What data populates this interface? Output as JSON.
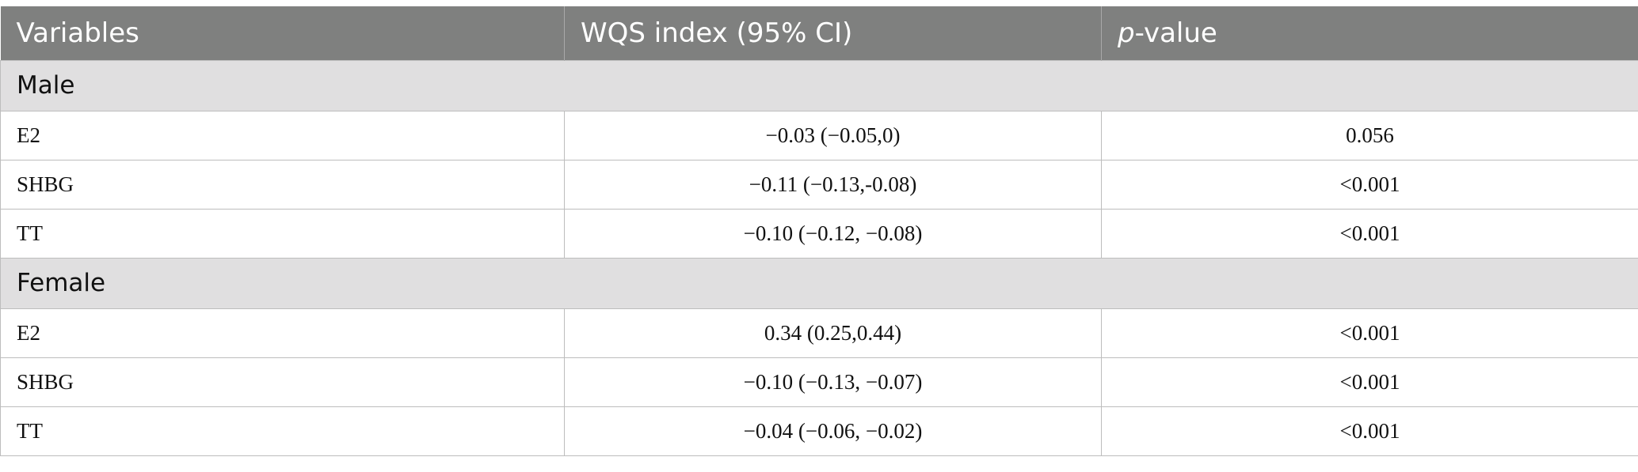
{
  "header": {
    "col1": "Variables",
    "col2": "WQS index (95% CI)",
    "col3_italic": "p",
    "col3_rest": "-value"
  },
  "groups": [
    {
      "label": "Male",
      "rows": [
        {
          "variable": "E2",
          "wqs": "−0.03 (−0.05,0)",
          "p": "0.056"
        },
        {
          "variable": "SHBG",
          "wqs": "−0.11 (−0.13,-0.08)",
          "p": "<0.001"
        },
        {
          "variable": "TT",
          "wqs": "−0.10 (−0.12, −0.08)",
          "p": "<0.001"
        }
      ]
    },
    {
      "label": "Female",
      "rows": [
        {
          "variable": "E2",
          "wqs": "0.34 (0.25,0.44)",
          "p": "<0.001"
        },
        {
          "variable": "SHBG",
          "wqs": "−0.10 (−0.13, −0.07)",
          "p": "<0.001"
        },
        {
          "variable": "TT",
          "wqs": "−0.04 (−0.06, −0.02)",
          "p": "<0.001"
        }
      ]
    }
  ]
}
